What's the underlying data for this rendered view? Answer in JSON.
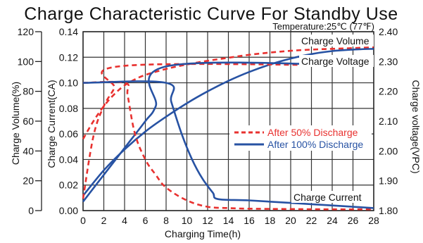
{
  "chart_data": {
    "type": "line",
    "title": "Charge Characteristic Curve For Standby Use",
    "subtitle": "Temperature:25℃ (77℉)",
    "xlabel": "Charging Time(h)",
    "xlim": [
      0,
      28
    ],
    "x_ticks": [
      0,
      2,
      4,
      6,
      8,
      10,
      12,
      14,
      16,
      18,
      20,
      22,
      24,
      26,
      28
    ],
    "y_axes": [
      {
        "label": "Charge Volume(%)",
        "ylim": [
          0,
          120
        ],
        "ticks": [
          "0",
          "20",
          "40",
          "60",
          "80",
          "100",
          "120"
        ]
      },
      {
        "label": "Charge Current(CA)",
        "ylim": [
          0.0,
          0.14
        ],
        "ticks": [
          "0.00",
          "0.02",
          "0.04",
          "0.06",
          "0.08",
          "0.10",
          "0.12",
          "0.14"
        ]
      },
      {
        "label": "Charge voltage(VPC)",
        "ylim": [
          1.8,
          2.4
        ],
        "ticks": [
          "1.80",
          "1.90",
          "2.00",
          "2.10",
          "2.20",
          "2.30",
          "2.40"
        ]
      }
    ],
    "grid": true,
    "legend_position": "right",
    "legend": [
      "After 50% Discharge",
      "After 100% Discharge"
    ],
    "annotations": [
      "Charge Volume",
      "Charge Voltage",
      "Charge Current"
    ],
    "series": [
      {
        "name": "After 50% Discharge",
        "quantity": "Charge Volume",
        "axis": "Charge Volume(%)",
        "color": "#e8312f",
        "dash": true,
        "x": [
          0,
          1,
          2,
          3,
          4,
          5,
          6,
          8,
          10,
          12,
          14,
          16,
          18,
          20,
          22,
          24,
          26,
          28
        ],
        "y": [
          48,
          60,
          70,
          78,
          84,
          88,
          91,
          95,
          98,
          100.5,
          102.5,
          104.5,
          106,
          107.2,
          108,
          108.5,
          109,
          109.5
        ]
      },
      {
        "name": "After 100% Discharge",
        "quantity": "Charge Volume",
        "axis": "Charge Volume(%)",
        "color": "#2752a3",
        "dash": false,
        "x": [
          0,
          2,
          4,
          6,
          8,
          10,
          12,
          14,
          16,
          18,
          20,
          22,
          24,
          26,
          28
        ],
        "y": [
          10,
          27,
          41,
          53,
          63,
          72,
          80,
          87,
          93,
          98,
          102,
          105,
          107,
          108,
          108.5
        ]
      },
      {
        "name": "After 50% Discharge",
        "quantity": "Charge Voltage",
        "axis": "Charge voltage(VPC)",
        "color": "#e8312f",
        "dash": true,
        "x": [
          0,
          1,
          2,
          3,
          4,
          28
        ],
        "y": [
          1.84,
          2.05,
          2.15,
          2.21,
          2.2857,
          2.2857
        ]
      },
      {
        "name": "After 100% Discharge",
        "quantity": "Charge Voltage",
        "axis": "Charge voltage(VPC)",
        "color": "#2752a3",
        "dash": false,
        "x": [
          0,
          2,
          4,
          6,
          7,
          8.3,
          28
        ],
        "y": [
          1.83,
          1.92,
          2.01,
          2.1,
          2.15,
          2.2857,
          2.2857
        ]
      },
      {
        "name": "After 50% Discharge",
        "quantity": "Charge Current",
        "axis": "Charge Current(CA)",
        "color": "#e8312f",
        "dash": true,
        "x": [
          0,
          4,
          4.3,
          5,
          6,
          7,
          8,
          10,
          12,
          14,
          16,
          20,
          24,
          28
        ],
        "y": [
          0.1,
          0.1,
          0.09,
          0.06,
          0.04,
          0.028,
          0.018,
          0.008,
          0.003,
          0.002,
          0.0015,
          0.0012,
          0.001,
          0.001
        ]
      },
      {
        "name": "After 100% Discharge",
        "quantity": "Charge Current",
        "axis": "Charge Current(CA)",
        "color": "#2752a3",
        "dash": false,
        "x": [
          0,
          8,
          8.5,
          9.5,
          10.5,
          11.5,
          12.5,
          13,
          16,
          20,
          24,
          28
        ],
        "y": [
          0.1,
          0.1,
          0.085,
          0.06,
          0.04,
          0.025,
          0.014,
          0.009,
          0.008,
          0.006,
          0.004,
          0.002
        ]
      }
    ]
  }
}
